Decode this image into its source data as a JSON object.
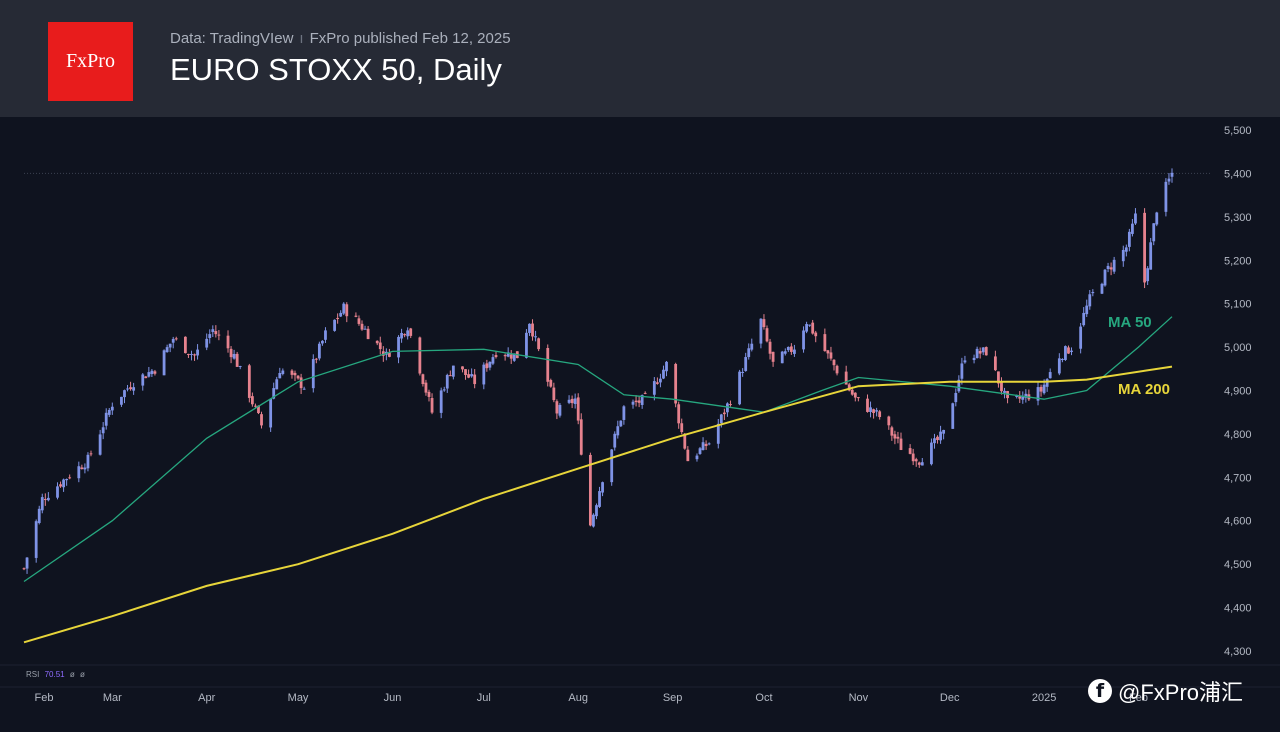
{
  "header": {
    "logo_text": "FxPro",
    "source": "Data: TradingVIew",
    "separator": "ı",
    "published": "FxPro published Feb 12, 2025",
    "title": "EURO STOXX 50, Daily"
  },
  "rsi": {
    "label": "RSI",
    "value": "70.51",
    "extra1": "ø",
    "extra2": "ø"
  },
  "watermark": {
    "icon": "facebook-icon",
    "text": "@FxPro浦汇"
  },
  "colors": {
    "background": "#0f131f",
    "header": "#262a35",
    "logo": "#e81c1c",
    "candle_up": "#7f93e6",
    "candle_down": "#e6828e",
    "ma50": "#26a77f",
    "ma200": "#e7d53a"
  },
  "chart_data": {
    "type": "candlestick",
    "title": "EURO STOXX 50, Daily",
    "x_ticks": [
      "Feb",
      "Mar",
      "Apr",
      "May",
      "Jun",
      "Jul",
      "Aug",
      "Sep",
      "Oct",
      "Nov",
      "Dec",
      "2025",
      "Feb"
    ],
    "y_ticks": [
      4300,
      4400,
      4500,
      4600,
      4700,
      4800,
      4900,
      5000,
      5100,
      5200,
      5300,
      5400,
      5500
    ],
    "y_tick_labels": [
      "4,300",
      "4,400",
      "4,500",
      "4,600",
      "4,700",
      "4,800",
      "4,900",
      "5,000",
      "5,100",
      "5,200",
      "5,300",
      "5,400",
      "5,500"
    ],
    "ylim": [
      4270,
      5530
    ],
    "last_price_line": 5400,
    "grid": false,
    "price_path": [
      [
        "2024-02-01",
        4490
      ],
      [
        "2024-02-07",
        4650
      ],
      [
        "2024-02-15",
        4700
      ],
      [
        "2024-02-22",
        4740
      ],
      [
        "2024-03-01",
        4870
      ],
      [
        "2024-03-08",
        4920
      ],
      [
        "2024-03-15",
        4950
      ],
      [
        "2024-03-21",
        5020
      ],
      [
        "2024-03-28",
        4980
      ],
      [
        "2024-04-03",
        5040
      ],
      [
        "2024-04-10",
        4980
      ],
      [
        "2024-04-19",
        4820
      ],
      [
        "2024-04-25",
        4950
      ],
      [
        "2024-05-03",
        4910
      ],
      [
        "2024-05-10",
        5030
      ],
      [
        "2024-05-16",
        5090
      ],
      [
        "2024-05-23",
        5040
      ],
      [
        "2024-05-30",
        4980
      ],
      [
        "2024-06-06",
        5050
      ],
      [
        "2024-06-14",
        4850
      ],
      [
        "2024-06-21",
        4960
      ],
      [
        "2024-06-28",
        4920
      ],
      [
        "2024-07-05",
        4990
      ],
      [
        "2024-07-12",
        4980
      ],
      [
        "2024-07-16",
        5060
      ],
      [
        "2024-07-25",
        4850
      ],
      [
        "2024-07-31",
        4880
      ],
      [
        "2024-08-05",
        4590
      ],
      [
        "2024-08-09",
        4700
      ],
      [
        "2024-08-16",
        4860
      ],
      [
        "2024-08-23",
        4880
      ],
      [
        "2024-08-30",
        4960
      ],
      [
        "2024-09-06",
        4740
      ],
      [
        "2024-09-13",
        4780
      ],
      [
        "2024-09-20",
        4880
      ],
      [
        "2024-09-30",
        5060
      ],
      [
        "2024-10-04",
        4960
      ],
      [
        "2024-10-11",
        5000
      ],
      [
        "2024-10-15",
        5060
      ],
      [
        "2024-10-22",
        4980
      ],
      [
        "2024-10-31",
        4880
      ],
      [
        "2024-11-08",
        4840
      ],
      [
        "2024-11-15",
        4770
      ],
      [
        "2024-11-21",
        4740
      ],
      [
        "2024-11-29",
        4800
      ],
      [
        "2024-12-06",
        4980
      ],
      [
        "2024-12-13",
        4990
      ],
      [
        "2024-12-20",
        4870
      ],
      [
        "2024-12-31",
        4900
      ],
      [
        "2025-01-06",
        4980
      ],
      [
        "2025-01-10",
        5000
      ],
      [
        "2025-01-16",
        5110
      ],
      [
        "2025-01-22",
        5180
      ],
      [
        "2025-01-28",
        5230
      ],
      [
        "2025-01-31",
        5300
      ],
      [
        "2025-02-03",
        5150
      ],
      [
        "2025-02-07",
        5320
      ],
      [
        "2025-02-12",
        5400
      ]
    ],
    "series": [
      {
        "name": "MA 50",
        "values": [
          [
            "2024-02-01",
            4460
          ],
          [
            "2024-03-01",
            4600
          ],
          [
            "2024-04-01",
            4790
          ],
          [
            "2024-05-01",
            4920
          ],
          [
            "2024-06-01",
            4990
          ],
          [
            "2024-07-01",
            4995
          ],
          [
            "2024-08-01",
            4960
          ],
          [
            "2024-08-16",
            4890
          ],
          [
            "2024-09-01",
            4880
          ],
          [
            "2024-10-01",
            4850
          ],
          [
            "2024-10-20",
            4900
          ],
          [
            "2024-11-01",
            4930
          ],
          [
            "2024-12-01",
            4910
          ],
          [
            "2025-01-01",
            4880
          ],
          [
            "2025-01-15",
            4900
          ],
          [
            "2025-02-01",
            5000
          ],
          [
            "2025-02-12",
            5070
          ]
        ]
      },
      {
        "name": "MA 200",
        "values": [
          [
            "2024-02-01",
            4320
          ],
          [
            "2024-03-01",
            4380
          ],
          [
            "2024-04-01",
            4450
          ],
          [
            "2024-05-01",
            4500
          ],
          [
            "2024-06-01",
            4570
          ],
          [
            "2024-07-01",
            4650
          ],
          [
            "2024-08-01",
            4720
          ],
          [
            "2024-09-01",
            4790
          ],
          [
            "2024-10-01",
            4850
          ],
          [
            "2024-11-01",
            4910
          ],
          [
            "2024-12-01",
            4920
          ],
          [
            "2025-01-01",
            4920
          ],
          [
            "2025-01-15",
            4925
          ],
          [
            "2025-02-12",
            4955
          ]
        ]
      }
    ]
  }
}
